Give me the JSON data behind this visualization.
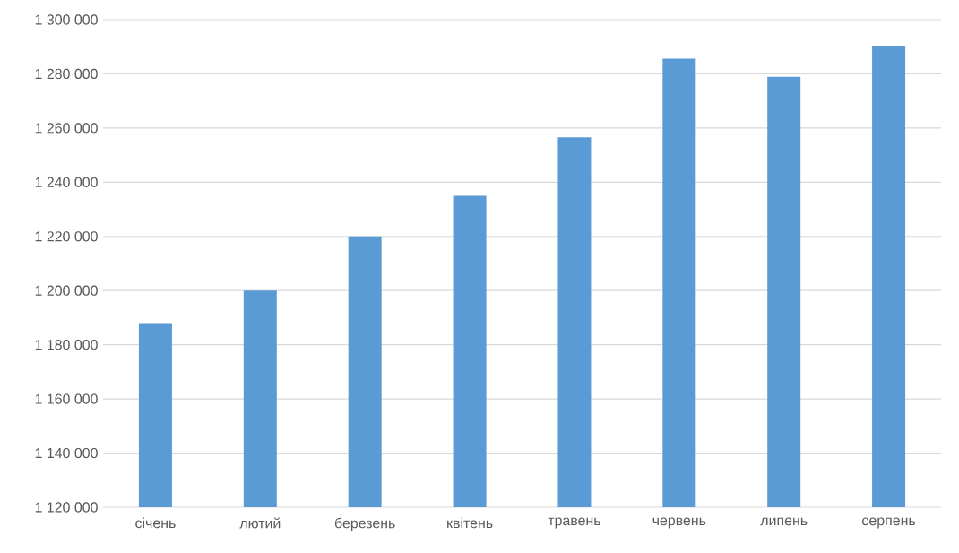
{
  "chart_data": {
    "type": "bar",
    "categories": [
      "січень",
      "лютий",
      "березень",
      "квітень",
      "травень",
      "червень",
      "липень",
      "серпень"
    ],
    "values": [
      1188000,
      1200000,
      1220000,
      1235000,
      1256600,
      1285600,
      1278900,
      1290400
    ],
    "color": "#5b9bd5",
    "ylim": [
      1120000,
      1300000
    ],
    "yticks": [
      {
        "value": 1120000,
        "label": "1 120 000"
      },
      {
        "value": 1140000,
        "label": "1 140 000"
      },
      {
        "value": 1160000,
        "label": "1 160 000"
      },
      {
        "value": 1180000,
        "label": "1 180 000"
      },
      {
        "value": 1200000,
        "label": "1 200 000"
      },
      {
        "value": 1220000,
        "label": "1 220 000"
      },
      {
        "value": 1240000,
        "label": "1 240 000"
      },
      {
        "value": 1260000,
        "label": "1 260 000"
      },
      {
        "value": 1280000,
        "label": "1 280 000"
      },
      {
        "value": 1300000,
        "label": "1 300 000"
      }
    ],
    "grid": "y"
  }
}
